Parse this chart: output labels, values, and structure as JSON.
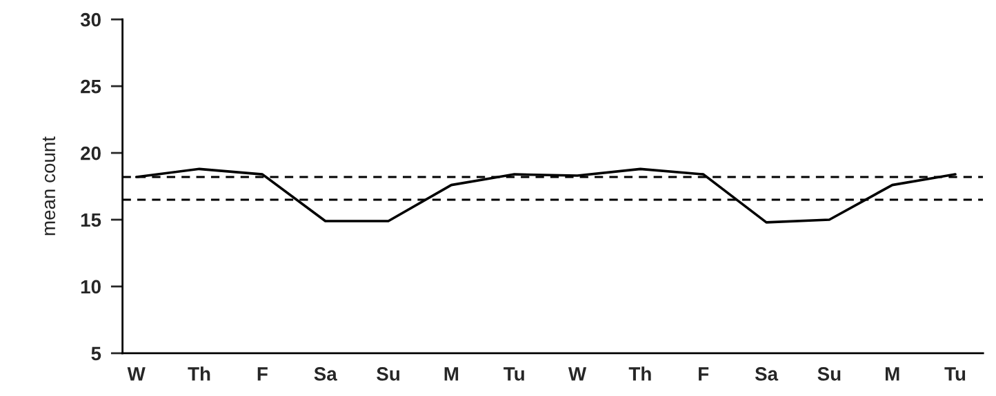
{
  "chart_data": {
    "type": "line",
    "ylabel": "mean count",
    "categories": [
      "W",
      "Th",
      "F",
      "Sa",
      "Su",
      "M",
      "Tu",
      "W",
      "Th",
      "F",
      "Sa",
      "Su",
      "M",
      "Tu"
    ],
    "series": [
      {
        "color": "#000000",
        "values": [
          18.2,
          18.8,
          18.4,
          14.9,
          14.9,
          17.6,
          18.4,
          18.3,
          18.8,
          18.4,
          14.8,
          15.0,
          17.6,
          18.4
        ]
      }
    ],
    "ylim": [
      5,
      30
    ],
    "yticks": [
      5,
      10,
      15,
      20,
      25,
      30
    ],
    "ref_lines": [
      {
        "axis": "y",
        "value": 18.2,
        "color": "#000000",
        "line_style": "dashed"
      },
      {
        "axis": "y",
        "value": 16.5,
        "color": "#000000",
        "line_style": "dashed"
      }
    ],
    "grid": false,
    "legend": false,
    "marker": "none",
    "line_style": "solid"
  }
}
